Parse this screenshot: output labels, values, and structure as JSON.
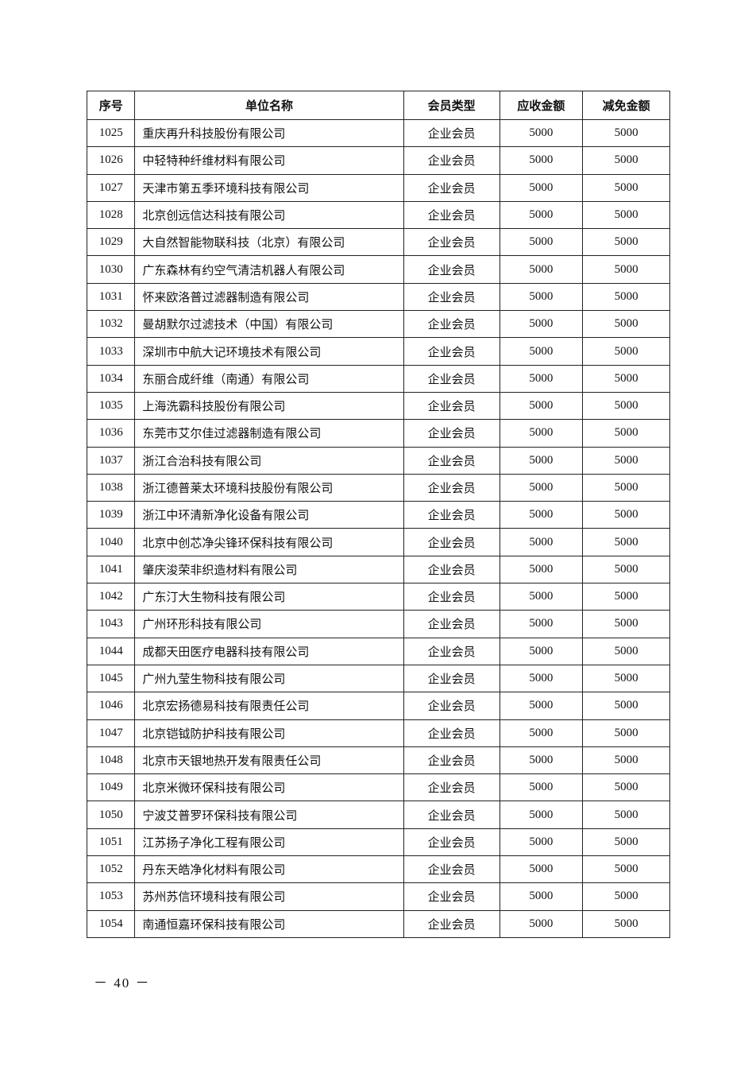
{
  "table": {
    "headers": [
      "序号",
      "单位名称",
      "会员类型",
      "应收金额",
      "减免金额"
    ],
    "rows": [
      [
        "1025",
        "重庆再升科技股份有限公司",
        "企业会员",
        "5000",
        "5000"
      ],
      [
        "1026",
        "中轻特种纤维材料有限公司",
        "企业会员",
        "5000",
        "5000"
      ],
      [
        "1027",
        "天津市第五季环境科技有限公司",
        "企业会员",
        "5000",
        "5000"
      ],
      [
        "1028",
        "北京创远信达科技有限公司",
        "企业会员",
        "5000",
        "5000"
      ],
      [
        "1029",
        "大自然智能物联科技（北京）有限公司",
        "企业会员",
        "5000",
        "5000"
      ],
      [
        "1030",
        "广东森林有约空气清洁机器人有限公司",
        "企业会员",
        "5000",
        "5000"
      ],
      [
        "1031",
        "怀来欧洛普过滤器制造有限公司",
        "企业会员",
        "5000",
        "5000"
      ],
      [
        "1032",
        "曼胡默尔过滤技术（中国）有限公司",
        "企业会员",
        "5000",
        "5000"
      ],
      [
        "1033",
        "深圳市中航大记环境技术有限公司",
        "企业会员",
        "5000",
        "5000"
      ],
      [
        "1034",
        "东丽合成纤维（南通）有限公司",
        "企业会员",
        "5000",
        "5000"
      ],
      [
        "1035",
        "上海洗霸科技股份有限公司",
        "企业会员",
        "5000",
        "5000"
      ],
      [
        "1036",
        "东莞市艾尔佳过滤器制造有限公司",
        "企业会员",
        "5000",
        "5000"
      ],
      [
        "1037",
        "浙江合治科技有限公司",
        "企业会员",
        "5000",
        "5000"
      ],
      [
        "1038",
        "浙江德普莱太环境科技股份有限公司",
        "企业会员",
        "5000",
        "5000"
      ],
      [
        "1039",
        "浙江中环清新净化设备有限公司",
        "企业会员",
        "5000",
        "5000"
      ],
      [
        "1040",
        "北京中创芯净尖锋环保科技有限公司",
        "企业会员",
        "5000",
        "5000"
      ],
      [
        "1041",
        "肇庆浚荣非织造材料有限公司",
        "企业会员",
        "5000",
        "5000"
      ],
      [
        "1042",
        "广东汀大生物科技有限公司",
        "企业会员",
        "5000",
        "5000"
      ],
      [
        "1043",
        "广州环形科技有限公司",
        "企业会员",
        "5000",
        "5000"
      ],
      [
        "1044",
        "成都天田医疗电器科技有限公司",
        "企业会员",
        "5000",
        "5000"
      ],
      [
        "1045",
        "广州九莹生物科技有限公司",
        "企业会员",
        "5000",
        "5000"
      ],
      [
        "1046",
        "北京宏扬德易科技有限责任公司",
        "企业会员",
        "5000",
        "5000"
      ],
      [
        "1047",
        "北京铠钺防护科技有限公司",
        "企业会员",
        "5000",
        "5000"
      ],
      [
        "1048",
        "北京市天银地热开发有限责任公司",
        "企业会员",
        "5000",
        "5000"
      ],
      [
        "1049",
        "北京米微环保科技有限公司",
        "企业会员",
        "5000",
        "5000"
      ],
      [
        "1050",
        "宁波艾普罗环保科技有限公司",
        "企业会员",
        "5000",
        "5000"
      ],
      [
        "1051",
        "江苏扬子净化工程有限公司",
        "企业会员",
        "5000",
        "5000"
      ],
      [
        "1052",
        "丹东天皓净化材料有限公司",
        "企业会员",
        "5000",
        "5000"
      ],
      [
        "1053",
        "苏州苏信环境科技有限公司",
        "企业会员",
        "5000",
        "5000"
      ],
      [
        "1054",
        "南通恒嘉环保科技有限公司",
        "企业会员",
        "5000",
        "5000"
      ]
    ]
  },
  "footer": {
    "page_number": "－ 40 －"
  }
}
